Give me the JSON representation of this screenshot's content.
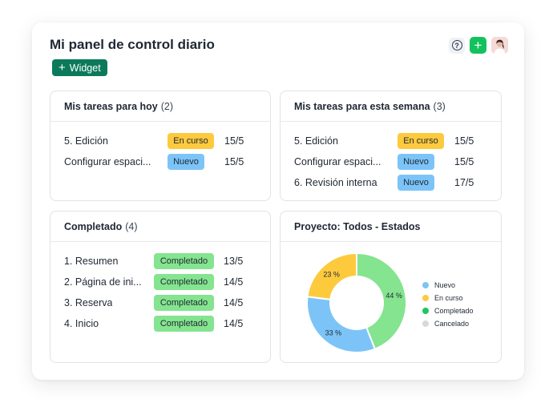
{
  "header": {
    "title": "Mi panel de control diario",
    "widget_label": "Widget"
  },
  "icons": {
    "help": "help-icon",
    "add": "plus-icon",
    "avatar": "user-avatar"
  },
  "panels": {
    "today": {
      "title": "Mis tareas para hoy",
      "count": "(2)",
      "rows": [
        {
          "name": "5. Edición",
          "status": "En curso",
          "date": "15/5"
        },
        {
          "name": "Configurar espaci...",
          "status": "Nuevo",
          "date": "15/5"
        }
      ]
    },
    "week": {
      "title": "Mis tareas para esta semana",
      "count": "(3)",
      "rows": [
        {
          "name": "5. Edición",
          "status": "En curso",
          "date": "15/5"
        },
        {
          "name": "Configurar espaci...",
          "status": "Nuevo",
          "date": "15/5"
        },
        {
          "name": "6. Revisión interna",
          "status": "Nuevo",
          "date": "17/5"
        }
      ]
    },
    "completed": {
      "title": "Completado",
      "count": "(4)",
      "rows": [
        {
          "name": "1. Resumen",
          "status": "Completado",
          "date": "13/5"
        },
        {
          "name": "2. Página de ini...",
          "status": "Completado",
          "date": "14/5"
        },
        {
          "name": "3. Reserva",
          "status": "Completado",
          "date": "14/5"
        },
        {
          "name": "4. Inicio",
          "status": "Completado",
          "date": "14/5"
        }
      ]
    },
    "project": {
      "title": "Proyecto: Todos - Estados",
      "chart_data": {
        "type": "pie",
        "slices": [
          {
            "name": "Nuevo",
            "value": 33,
            "label": "33 %",
            "color": "#7cc4f8"
          },
          {
            "name": "En curso",
            "value": 23,
            "label": "23 %",
            "color": "#fdca3e"
          },
          {
            "name": "Completado",
            "value": 44,
            "label": "44 %",
            "color": "#84e48f"
          },
          {
            "name": "Cancelado",
            "value": 0,
            "label": "",
            "color": "#d6d8db"
          }
        ],
        "legend": [
          "Nuevo",
          "En curso",
          "Completado",
          "Cancelado"
        ],
        "legend_colors": [
          "#7cc4f8",
          "#fdca3e",
          "#1fc65a",
          "#d6d8db"
        ]
      }
    }
  },
  "colors": {
    "accent": "#0b7a5a",
    "add": "#14c25d"
  }
}
